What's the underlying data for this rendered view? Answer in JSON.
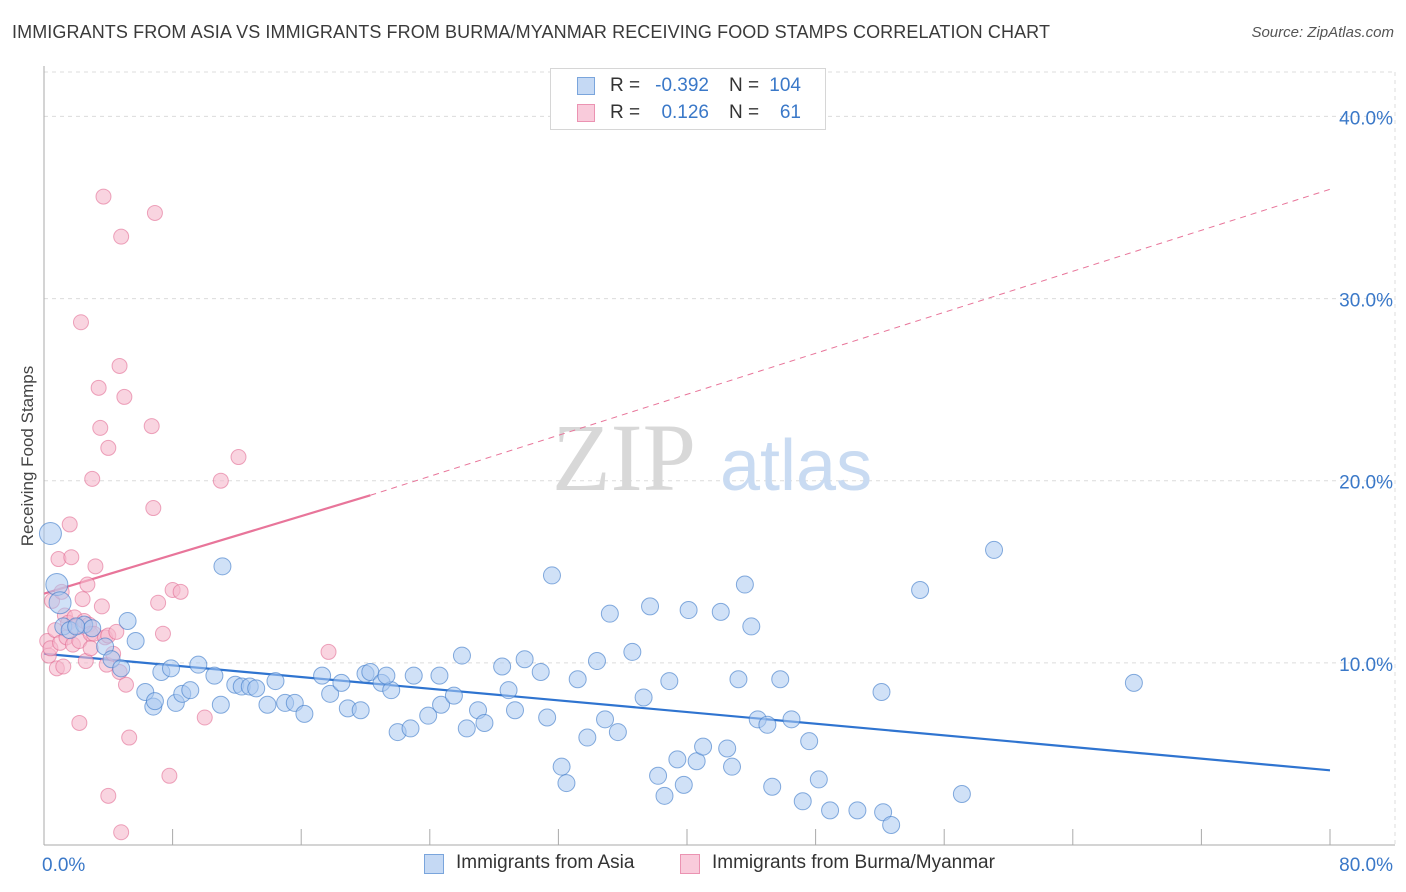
{
  "title": "IMMIGRANTS FROM ASIA VS IMMIGRANTS FROM BURMA/MYANMAR RECEIVING FOOD STAMPS CORRELATION CHART",
  "source": "Source: ZipAtlas.com",
  "watermark": {
    "zip": "ZIP",
    "atlas": "atlas"
  },
  "colors": {
    "blue": "#3a78c8",
    "blue_fill": "#a9c8f0",
    "blue_line": "#2f74d0",
    "pink": "#e0628c",
    "pink_fill": "#f5b8cc",
    "pink_line": "#e8759a",
    "grid": "#dcdcdc",
    "axis_text": "#3a78c8"
  },
  "legend_top": {
    "r_label": "R =",
    "n_label": "N =",
    "rows": [
      {
        "series": "Immigrants from Asia",
        "r": "-0.392",
        "n": "104"
      },
      {
        "series": "Immigrants from Burma/Myanmar",
        "r": "0.126",
        "n": "61"
      }
    ]
  },
  "legend_bottom": [
    "Immigrants from Asia",
    "Immigrants from Burma/Myanmar"
  ],
  "chart_data": {
    "type": "scatter",
    "title": "IMMIGRANTS FROM ASIA VS IMMIGRANTS FROM BURMA/MYANMAR RECEIVING FOOD STAMPS CORRELATION CHART",
    "xlabel": "",
    "ylabel": "Receiving Food Stamps",
    "xlim": [
      0,
      80
    ],
    "ylim": [
      0,
      42
    ],
    "x_tick_labels": [
      "0.0%",
      "80.0%"
    ],
    "y_ticks": [
      10,
      20,
      30,
      40
    ],
    "y_tick_labels": [
      "10.0%",
      "20.0%",
      "30.0%",
      "40.0%"
    ],
    "grid": true,
    "series": [
      {
        "name": "Immigrants from Asia",
        "color": "#3a78c8",
        "trend": {
          "x": [
            0,
            80
          ],
          "y": [
            10.5,
            4.1
          ],
          "style": "solid"
        },
        "points": [
          [
            0.4,
            17.1
          ],
          [
            0.8,
            14.3
          ],
          [
            1.0,
            13.3
          ],
          [
            1.2,
            12.0
          ],
          [
            1.6,
            11.8
          ],
          [
            2.5,
            12.1
          ],
          [
            3.0,
            11.9
          ],
          [
            3.8,
            10.9
          ],
          [
            4.2,
            10.2
          ],
          [
            4.8,
            9.7
          ],
          [
            5.2,
            12.3
          ],
          [
            5.7,
            11.2
          ],
          [
            6.3,
            8.4
          ],
          [
            6.8,
            7.6
          ],
          [
            7.3,
            9.5
          ],
          [
            7.9,
            9.7
          ],
          [
            8.2,
            7.8
          ],
          [
            8.6,
            8.3
          ],
          [
            9.1,
            8.5
          ],
          [
            9.6,
            9.9
          ],
          [
            10.6,
            9.3
          ],
          [
            11.0,
            7.7
          ],
          [
            11.1,
            15.3
          ],
          [
            11.9,
            8.8
          ],
          [
            12.3,
            8.7
          ],
          [
            12.8,
            8.7
          ],
          [
            13.9,
            7.7
          ],
          [
            14.4,
            9.0
          ],
          [
            15.0,
            7.8
          ],
          [
            15.6,
            7.8
          ],
          [
            16.2,
            7.2
          ],
          [
            17.3,
            9.3
          ],
          [
            17.8,
            8.3
          ],
          [
            18.5,
            8.9
          ],
          [
            18.9,
            7.5
          ],
          [
            19.7,
            7.4
          ],
          [
            20.0,
            9.4
          ],
          [
            20.3,
            9.5
          ],
          [
            21.0,
            8.9
          ],
          [
            21.6,
            8.5
          ],
          [
            22.0,
            6.2
          ],
          [
            23.0,
            9.3
          ],
          [
            22.8,
            6.4
          ],
          [
            23.9,
            7.1
          ],
          [
            24.6,
            9.3
          ],
          [
            24.7,
            7.7
          ],
          [
            25.5,
            8.2
          ],
          [
            26.0,
            10.4
          ],
          [
            26.3,
            6.4
          ],
          [
            27.0,
            7.4
          ],
          [
            27.4,
            6.7
          ],
          [
            28.5,
            9.8
          ],
          [
            28.9,
            8.5
          ],
          [
            29.3,
            7.4
          ],
          [
            29.9,
            10.2
          ],
          [
            30.9,
            9.5
          ],
          [
            31.3,
            7.0
          ],
          [
            31.6,
            14.8
          ],
          [
            32.2,
            4.3
          ],
          [
            32.5,
            3.4
          ],
          [
            33.2,
            9.1
          ],
          [
            33.8,
            5.9
          ],
          [
            34.4,
            10.1
          ],
          [
            34.9,
            6.9
          ],
          [
            35.2,
            12.7
          ],
          [
            35.7,
            6.2
          ],
          [
            36.6,
            10.6
          ],
          [
            37.3,
            8.1
          ],
          [
            37.7,
            13.1
          ],
          [
            38.2,
            3.8
          ],
          [
            38.6,
            2.7
          ],
          [
            38.9,
            9.0
          ],
          [
            39.4,
            4.7
          ],
          [
            39.8,
            3.3
          ],
          [
            40.1,
            12.9
          ],
          [
            40.6,
            4.6
          ],
          [
            41.0,
            5.4
          ],
          [
            42.1,
            12.8
          ],
          [
            42.8,
            4.3
          ],
          [
            43.2,
            9.1
          ],
          [
            43.6,
            14.3
          ],
          [
            44.0,
            12.0
          ],
          [
            44.4,
            6.9
          ],
          [
            45.0,
            6.6
          ],
          [
            45.3,
            3.2
          ],
          [
            45.8,
            9.1
          ],
          [
            46.5,
            6.9
          ],
          [
            47.2,
            2.4
          ],
          [
            47.6,
            5.7
          ],
          [
            48.2,
            3.6
          ],
          [
            48.9,
            1.9
          ],
          [
            50.6,
            1.9
          ],
          [
            52.1,
            8.4
          ],
          [
            52.2,
            1.8
          ],
          [
            52.7,
            1.1
          ],
          [
            54.5,
            14.0
          ],
          [
            57.1,
            2.8
          ],
          [
            59.1,
            16.2
          ],
          [
            67.8,
            8.9
          ],
          [
            2.0,
            12.0
          ],
          [
            6.9,
            7.9
          ],
          [
            13.2,
            8.6
          ],
          [
            21.3,
            9.3
          ],
          [
            42.5,
            5.3
          ]
        ]
      },
      {
        "name": "Immigrants from Burma/Myanmar",
        "color": "#e0628c",
        "trend": {
          "x": [
            0,
            20.3,
            80
          ],
          "y": [
            13.8,
            19.2,
            36.0
          ],
          "style": "solid-then-dashed"
        },
        "points": [
          [
            0.2,
            11.2
          ],
          [
            0.3,
            10.4
          ],
          [
            0.4,
            10.8
          ],
          [
            0.5,
            13.4
          ],
          [
            0.7,
            11.8
          ],
          [
            0.8,
            9.7
          ],
          [
            0.9,
            15.7
          ],
          [
            1.0,
            11.1
          ],
          [
            1.1,
            13.9
          ],
          [
            1.3,
            12.6
          ],
          [
            1.4,
            11.4
          ],
          [
            1.5,
            12.2
          ],
          [
            1.6,
            17.6
          ],
          [
            1.7,
            15.8
          ],
          [
            1.8,
            11.0
          ],
          [
            1.9,
            12.5
          ],
          [
            2.0,
            12.0
          ],
          [
            2.2,
            11.2
          ],
          [
            2.4,
            13.5
          ],
          [
            2.5,
            12.3
          ],
          [
            2.6,
            10.1
          ],
          [
            2.7,
            14.3
          ],
          [
            2.8,
            12.1
          ],
          [
            2.9,
            11.6
          ],
          [
            2.2,
            6.7
          ],
          [
            2.3,
            28.7
          ],
          [
            3.0,
            20.1
          ],
          [
            3.1,
            11.6
          ],
          [
            3.2,
            15.3
          ],
          [
            3.4,
            25.1
          ],
          [
            3.5,
            22.9
          ],
          [
            3.6,
            13.1
          ],
          [
            3.8,
            11.4
          ],
          [
            3.9,
            9.9
          ],
          [
            4.0,
            11.5
          ],
          [
            4.3,
            10.5
          ],
          [
            4.5,
            11.7
          ],
          [
            4.7,
            9.5
          ],
          [
            4.0,
            21.8
          ],
          [
            4.7,
            26.3
          ],
          [
            3.7,
            35.6
          ],
          [
            4.8,
            33.4
          ],
          [
            5.0,
            24.6
          ],
          [
            5.1,
            8.8
          ],
          [
            5.3,
            5.9
          ],
          [
            4.0,
            2.7
          ],
          [
            4.8,
            0.7
          ],
          [
            6.7,
            23.0
          ],
          [
            6.8,
            18.5
          ],
          [
            6.9,
            34.7
          ],
          [
            7.1,
            13.3
          ],
          [
            7.4,
            11.6
          ],
          [
            7.8,
            3.8
          ],
          [
            8.0,
            14.0
          ],
          [
            8.5,
            13.9
          ],
          [
            10.0,
            7.0
          ],
          [
            11.0,
            20.0
          ],
          [
            12.1,
            21.3
          ],
          [
            17.7,
            10.6
          ],
          [
            2.9,
            10.8
          ],
          [
            1.2,
            9.8
          ]
        ]
      }
    ]
  }
}
